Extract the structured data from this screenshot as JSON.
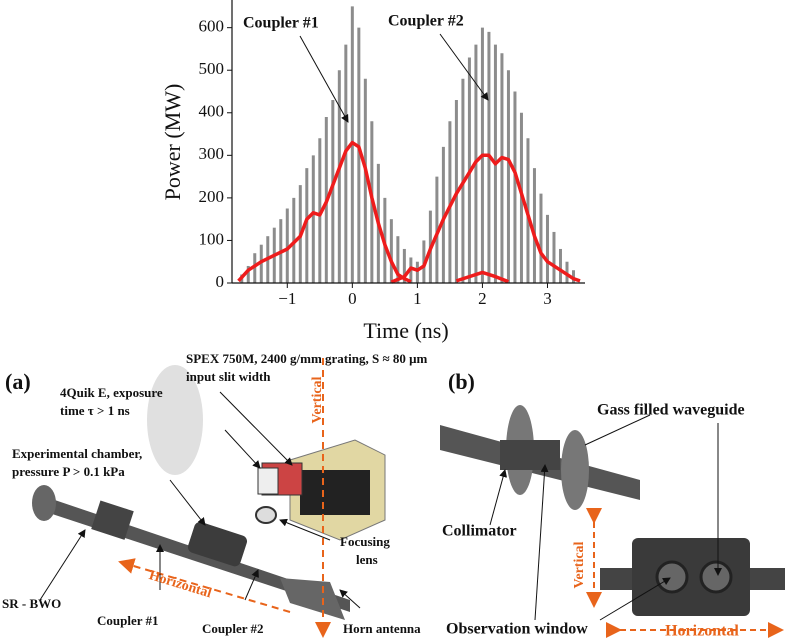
{
  "chart_data": {
    "type": "line",
    "xlabel": "Time (ns)",
    "ylabel": "Power (MW)",
    "xlim": [
      -1.85,
      3.5
    ],
    "ylim": [
      0,
      665
    ],
    "xticks": [
      {
        "value": -1,
        "label": "−1"
      },
      0,
      1,
      2,
      3
    ],
    "yticks": [
      0,
      100,
      200,
      300,
      400,
      500,
      600
    ],
    "annotations": [
      "Coupler #1",
      "Coupler #2"
    ],
    "series": [
      {
        "type": "stem",
        "color": "#8c8c8c",
        "x": [
          -1.7,
          -1.6,
          -1.5,
          -1.4,
          -1.3,
          -1.2,
          -1.1,
          -1.0,
          -0.9,
          -0.8,
          -0.7,
          -0.6,
          -0.5,
          -0.4,
          -0.3,
          -0.2,
          -0.1,
          0.0,
          0.1,
          0.2,
          0.3,
          0.4,
          0.5,
          0.6,
          0.7,
          0.8,
          0.9,
          1.0,
          1.1,
          1.2,
          1.3,
          1.4,
          1.5,
          1.6,
          1.7,
          1.8,
          1.9,
          2.0,
          2.1,
          2.2,
          2.3,
          2.4,
          2.5,
          2.6,
          2.7,
          2.8,
          2.9,
          3.0,
          3.1,
          3.2,
          3.3,
          3.4
        ],
        "values": [
          20,
          40,
          70,
          90,
          110,
          130,
          150,
          175,
          200,
          230,
          270,
          300,
          340,
          390,
          430,
          500,
          560,
          650,
          600,
          480,
          380,
          280,
          200,
          150,
          110,
          80,
          60,
          50,
          100,
          170,
          250,
          320,
          380,
          430,
          480,
          530,
          560,
          600,
          590,
          560,
          540,
          500,
          450,
          400,
          340,
          270,
          210,
          160,
          120,
          80,
          50,
          30
        ]
      },
      {
        "type": "line",
        "color": "#ee1c1c",
        "x": [
          -1.75,
          -1.6,
          -1.4,
          -1.2,
          -1.0,
          -0.8,
          -0.7,
          -0.6,
          -0.5,
          -0.4,
          -0.3,
          -0.2,
          -0.1,
          0.0,
          0.1,
          0.2,
          0.3,
          0.4,
          0.5,
          0.6,
          0.7,
          0.8,
          0.9,
          1.2,
          1.6,
          1.8,
          2.0,
          2.2,
          2.4
        ],
        "values": [
          5,
          30,
          50,
          65,
          80,
          110,
          150,
          165,
          160,
          190,
          230,
          270,
          310,
          330,
          320,
          270,
          200,
          140,
          90,
          50,
          20,
          10,
          3,
          null,
          5,
          15,
          25,
          15,
          3
        ]
      },
      {
        "type": "line",
        "color": "#ee1c1c",
        "x": [
          0.6,
          0.8,
          0.9,
          1.0,
          1.1,
          1.2,
          1.4,
          1.6,
          1.8,
          1.9,
          2.0,
          2.1,
          2.2,
          2.3,
          2.4,
          2.5,
          2.6,
          2.7,
          2.8,
          2.9,
          3.0,
          3.2,
          3.4,
          3.5
        ],
        "values": [
          2,
          15,
          35,
          30,
          40,
          80,
          150,
          210,
          260,
          285,
          300,
          300,
          280,
          295,
          290,
          260,
          210,
          160,
          110,
          70,
          50,
          30,
          10,
          5
        ]
      }
    ]
  },
  "panel_a": {
    "tag": "(a)",
    "spectrometer": [
      "SPEX 750M, 2400 g/mm grating, S ≈ 80 μm",
      "input slit width"
    ],
    "camera": [
      "4Quik E, exposure",
      "time τ > 1 ns"
    ],
    "chamber": [
      "Experimental chamber,",
      "pressure P > 0.1 kPa"
    ],
    "vertical": "Vertical",
    "horizontal": "Horizontal",
    "lens": [
      "Focusing",
      "lens"
    ],
    "source": "SR - BWO",
    "coupler1": "Coupler #1",
    "coupler2": "Coupler #2",
    "horn": "Horn antenna"
  },
  "panel_b": {
    "tag": "(b)",
    "waveguide": "Gass filled waveguide",
    "collimator": "Collimator",
    "vertical": "Vertical",
    "horizontal": "Horizontal",
    "window": "Observation window"
  }
}
